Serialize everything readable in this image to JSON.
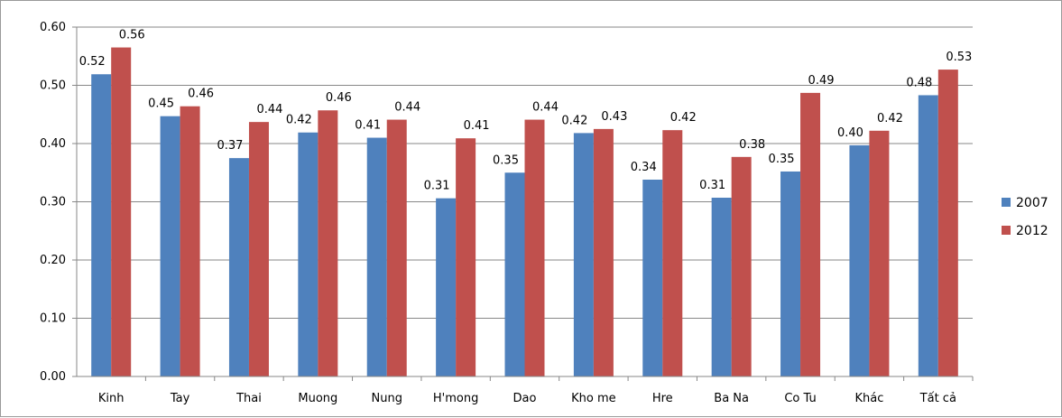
{
  "colors": {
    "series_2007": "#4F81BD",
    "series_2012": "#C0504D",
    "grid": "#878787",
    "axis": "#878787"
  },
  "chart_data": {
    "type": "bar",
    "title": "",
    "xlabel": "",
    "ylabel": "",
    "ylim": [
      0,
      0.6
    ],
    "yticks": [
      "0.00",
      "0.10",
      "0.20",
      "0.30",
      "0.40",
      "0.50",
      "0.60"
    ],
    "grid": true,
    "legend": "right",
    "categories": [
      "Kinh",
      "Tay",
      "Thai",
      "Muong",
      "Nung",
      "H'mong",
      "Dao",
      "Kho me",
      "Hre",
      "Ba Na",
      "Co Tu",
      "Khác",
      "Tất cả"
    ],
    "series": [
      {
        "name": "2007",
        "values": [
          0.519,
          0.447,
          0.375,
          0.419,
          0.41,
          0.306,
          0.35,
          0.418,
          0.338,
          0.307,
          0.352,
          0.397,
          0.483
        ],
        "labels": [
          "0.52",
          "0.45",
          "0.37",
          "0.42",
          "0.41",
          "0.31",
          "0.35",
          "0.42",
          "0.34",
          "0.31",
          "0.35",
          "0.40",
          "0.48"
        ]
      },
      {
        "name": "2012",
        "values": [
          0.565,
          0.464,
          0.437,
          0.457,
          0.441,
          0.409,
          0.441,
          0.425,
          0.423,
          0.377,
          0.487,
          0.422,
          0.527
        ],
        "labels": [
          "0.56",
          "0.46",
          "0.44",
          "0.46",
          "0.44",
          "0.41",
          "0.44",
          "0.43",
          "0.42",
          "0.38",
          "0.49",
          "0.42",
          "0.53"
        ]
      }
    ]
  }
}
